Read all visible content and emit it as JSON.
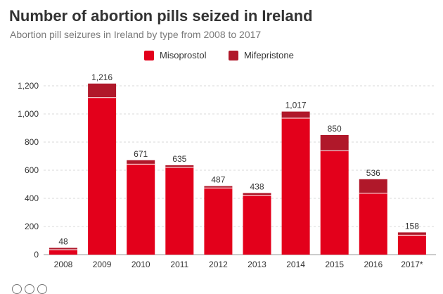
{
  "title": "Number of abortion pills seized in Ireland",
  "subtitle": "Abortion pill seizures in Ireland by type from 2008 to 2017",
  "colors": {
    "misoprostol": "#e3001b",
    "mifepristone": "#b0182a",
    "grid": "#d9d9d9",
    "axis_text": "#333333",
    "label_text": "#333333"
  },
  "legend": {
    "misoprostol": "Misoprostol",
    "mifepristone": "Mifepristone"
  },
  "chart_data": {
    "type": "bar",
    "stacked": true,
    "title": "Number of abortion pills seized in Ireland",
    "subtitle": "Abortion pill seizures in Ireland by type from 2008 to 2017",
    "categories": [
      "2008",
      "2009",
      "2010",
      "2011",
      "2012",
      "2013",
      "2014",
      "2015",
      "2016",
      "2017*"
    ],
    "series": [
      {
        "name": "Misoprostol",
        "values": [
          35,
          1116,
          643,
          620,
          474,
          422,
          970,
          738,
          436,
          138
        ]
      },
      {
        "name": "Mifepristone",
        "values": [
          13,
          100,
          28,
          15,
          13,
          16,
          47,
          112,
          100,
          20
        ]
      }
    ],
    "totals": [
      "48",
      "1,216",
      "671",
      "635",
      "487",
      "438",
      "1,017",
      "850",
      "536",
      "158"
    ],
    "y_ticks": [
      "0",
      "200",
      "400",
      "600",
      "800",
      "1,000",
      "1,200"
    ],
    "ylim": [
      0,
      1200
    ],
    "xlabel": "",
    "ylabel": "",
    "grid": true,
    "legend_position": "top-center"
  }
}
